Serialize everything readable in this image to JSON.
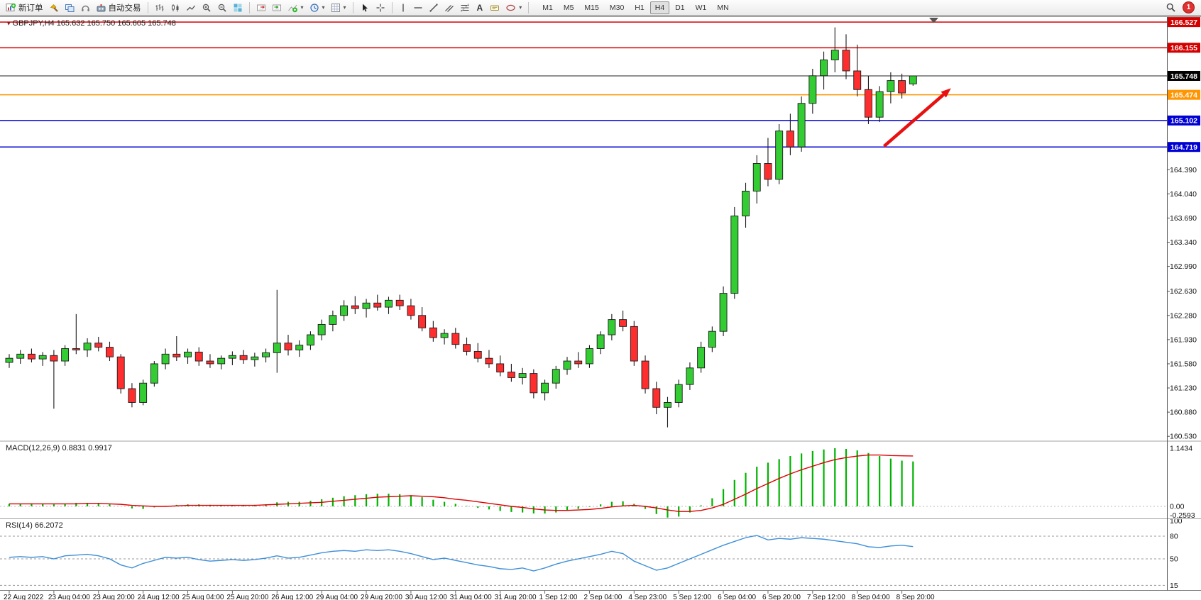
{
  "toolbar": {
    "new_order_label": "新订单",
    "algo_trading_label": "自动交易",
    "timeframes": [
      "M1",
      "M5",
      "M15",
      "M30",
      "H1",
      "H4",
      "D1",
      "W1",
      "MN"
    ],
    "active_timeframe": "H4",
    "notification_count": "1",
    "icon_names": [
      "new-order-icon",
      "hammer-icon",
      "chart-windows-icon",
      "headset-icon",
      "algo-trading-icon",
      "bars-chart-icon",
      "candlestick-chart-icon",
      "line-chart-icon",
      "zoom-in-icon",
      "zoom-out-icon",
      "tile-windows-icon",
      "auto-scroll-icon",
      "chart-shift-icon",
      "indicators-icon",
      "periods-icon",
      "templates-icon",
      "cursor-icon",
      "crosshair-icon",
      "vertical-line-icon",
      "horizontal-line-icon",
      "trendline-icon",
      "channel-icon",
      "fibonacci-icon",
      "text-tool-icon",
      "label-icon",
      "shapes-icon",
      "search-icon",
      "notification-badge"
    ]
  },
  "chart": {
    "header": "GBPJPY,H4 165.632 165.750 165.605 165.748",
    "symbol": "GBPJPY",
    "timeframe": "H4",
    "open": "165.632",
    "high": "165.750",
    "low": "165.605",
    "close": "165.748"
  },
  "macd": {
    "label": "MACD(12,26,9) 0.8831 0.9917"
  },
  "rsi": {
    "label": "RSI(14) 66.2072"
  },
  "chart_data": {
    "type": "candlestick",
    "title": "GBPJPY,H4",
    "ylim": [
      160.49,
      166.6
    ],
    "up_color": "#33cc33",
    "down_color": "#ff2e2e",
    "price_axis_ticks": [
      164.39,
      164.04,
      163.69,
      163.34,
      162.99,
      162.63,
      162.28,
      161.93,
      161.58,
      161.23,
      160.88,
      160.53
    ],
    "price_lines": [
      {
        "price": 166.527,
        "label": "166.527",
        "color": "#d40000",
        "kind": "resistance-line"
      },
      {
        "price": 166.155,
        "label": "166.155",
        "color": "#d40000",
        "kind": "resistance-line"
      },
      {
        "price": 165.748,
        "label": "165.748",
        "color": "#222222",
        "kind": "current-price"
      },
      {
        "price": 165.474,
        "label": "165.474",
        "color": "#ff9500",
        "kind": "support-line"
      },
      {
        "price": 165.102,
        "label": "165.102",
        "color": "#0000d4",
        "kind": "support-line"
      },
      {
        "price": 164.719,
        "label": "164.719",
        "color": "#0000d4",
        "kind": "support-line"
      }
    ],
    "x_labels": [
      "22 Aug 2022",
      "23 Aug 04:00",
      "23 Aug 20:00",
      "24 Aug 12:00",
      "25 Aug 04:00",
      "25 Aug 20:00",
      "26 Aug 12:00",
      "29 Aug 04:00",
      "29 Aug 20:00",
      "30 Aug 12:00",
      "31 Aug 04:00",
      "31 Aug 20:00",
      "1 Sep 12:00",
      "2 Sep 04:00",
      "4 Sep 23:00",
      "5 Sep 12:00",
      "6 Sep 04:00",
      "6 Sep 20:00",
      "7 Sep 12:00",
      "8 Sep 04:00",
      "8 Sep 20:00"
    ],
    "x_label_step": 4,
    "candles_ohlc": [
      [
        161.6,
        161.72,
        161.52,
        161.66
      ],
      [
        161.66,
        161.78,
        161.58,
        161.72
      ],
      [
        161.72,
        161.8,
        161.6,
        161.65
      ],
      [
        161.65,
        161.75,
        161.55,
        161.7
      ],
      [
        161.7,
        161.78,
        160.93,
        161.62
      ],
      [
        161.62,
        161.85,
        161.55,
        161.8
      ],
      [
        161.8,
        162.3,
        161.72,
        161.78
      ],
      [
        161.78,
        161.95,
        161.68,
        161.88
      ],
      [
        161.88,
        161.97,
        161.76,
        161.82
      ],
      [
        161.82,
        161.9,
        161.62,
        161.68
      ],
      [
        161.68,
        161.72,
        161.15,
        161.22
      ],
      [
        161.22,
        161.3,
        160.95,
        161.02
      ],
      [
        161.02,
        161.35,
        160.98,
        161.3
      ],
      [
        161.3,
        161.62,
        161.25,
        161.58
      ],
      [
        161.58,
        161.8,
        161.5,
        161.72
      ],
      [
        161.72,
        161.98,
        161.62,
        161.68
      ],
      [
        161.68,
        161.8,
        161.58,
        161.75
      ],
      [
        161.75,
        161.82,
        161.55,
        161.62
      ],
      [
        161.62,
        161.72,
        161.52,
        161.58
      ],
      [
        161.58,
        161.7,
        161.5,
        161.66
      ],
      [
        161.66,
        161.76,
        161.56,
        161.7
      ],
      [
        161.7,
        161.78,
        161.58,
        161.64
      ],
      [
        161.64,
        161.74,
        161.54,
        161.68
      ],
      [
        161.68,
        161.8,
        161.6,
        161.74
      ],
      [
        161.74,
        162.65,
        161.45,
        161.88
      ],
      [
        161.88,
        162.0,
        161.7,
        161.78
      ],
      [
        161.78,
        161.92,
        161.68,
        161.85
      ],
      [
        161.85,
        162.05,
        161.78,
        162.0
      ],
      [
        162.0,
        162.22,
        161.92,
        162.15
      ],
      [
        162.15,
        162.35,
        162.05,
        162.28
      ],
      [
        162.28,
        162.5,
        162.2,
        162.42
      ],
      [
        162.42,
        162.56,
        162.3,
        162.38
      ],
      [
        162.38,
        162.52,
        162.25,
        162.46
      ],
      [
        162.46,
        162.58,
        162.35,
        162.4
      ],
      [
        162.4,
        162.55,
        162.3,
        162.5
      ],
      [
        162.5,
        162.58,
        162.36,
        162.42
      ],
      [
        162.42,
        162.52,
        162.22,
        162.28
      ],
      [
        162.28,
        162.4,
        162.05,
        162.1
      ],
      [
        162.1,
        162.2,
        161.9,
        161.96
      ],
      [
        161.96,
        162.08,
        161.86,
        162.02
      ],
      [
        162.02,
        162.1,
        161.8,
        161.86
      ],
      [
        161.86,
        161.96,
        161.7,
        161.76
      ],
      [
        161.76,
        161.88,
        161.6,
        161.66
      ],
      [
        161.66,
        161.78,
        161.52,
        161.58
      ],
      [
        161.58,
        161.7,
        161.4,
        161.46
      ],
      [
        161.46,
        161.58,
        161.32,
        161.38
      ],
      [
        161.38,
        161.52,
        161.28,
        161.44
      ],
      [
        161.44,
        161.5,
        161.08,
        161.16
      ],
      [
        161.16,
        161.35,
        161.05,
        161.3
      ],
      [
        161.3,
        161.55,
        161.22,
        161.5
      ],
      [
        161.5,
        161.68,
        161.42,
        161.62
      ],
      [
        161.62,
        161.75,
        161.52,
        161.58
      ],
      [
        161.58,
        161.85,
        161.52,
        161.8
      ],
      [
        161.8,
        162.05,
        161.72,
        162.0
      ],
      [
        162.0,
        162.3,
        161.92,
        162.22
      ],
      [
        162.22,
        162.35,
        162.05,
        162.12
      ],
      [
        162.12,
        162.2,
        161.55,
        161.62
      ],
      [
        161.62,
        161.7,
        161.15,
        161.22
      ],
      [
        161.22,
        161.32,
        160.85,
        160.95
      ],
      [
        160.95,
        161.1,
        160.66,
        161.02
      ],
      [
        161.02,
        161.35,
        160.95,
        161.28
      ],
      [
        161.28,
        161.6,
        161.2,
        161.52
      ],
      [
        161.52,
        161.9,
        161.45,
        161.82
      ],
      [
        161.82,
        162.12,
        161.75,
        162.05
      ],
      [
        162.05,
        162.7,
        161.98,
        162.6
      ],
      [
        162.6,
        163.85,
        162.52,
        163.72
      ],
      [
        163.72,
        164.2,
        163.55,
        164.08
      ],
      [
        164.08,
        164.6,
        163.9,
        164.48
      ],
      [
        164.48,
        164.85,
        164.15,
        164.25
      ],
      [
        164.25,
        165.05,
        164.18,
        164.95
      ],
      [
        164.95,
        165.2,
        164.6,
        164.72
      ],
      [
        164.72,
        165.45,
        164.65,
        165.35
      ],
      [
        165.35,
        165.85,
        165.2,
        165.75
      ],
      [
        165.75,
        166.1,
        165.55,
        165.98
      ],
      [
        165.98,
        166.45,
        165.8,
        166.12
      ],
      [
        166.12,
        166.35,
        165.7,
        165.82
      ],
      [
        165.82,
        166.2,
        165.45,
        165.55
      ],
      [
        165.55,
        165.75,
        165.05,
        165.15
      ],
      [
        165.15,
        165.6,
        165.08,
        165.52
      ],
      [
        165.52,
        165.8,
        165.35,
        165.68
      ],
      [
        165.68,
        165.78,
        165.42,
        165.5
      ],
      [
        165.632,
        165.75,
        165.605,
        165.748
      ]
    ],
    "macd": {
      "params": "12,26,9",
      "main_value": 0.8831,
      "signal_value": 0.9917,
      "hist_color": "#00b300",
      "signal_color": "#dd0000",
      "axis_ticks": [
        {
          "v": 1.1434,
          "label": "1.1434"
        },
        {
          "v": 0,
          "label": "0.00"
        },
        {
          "v": -0.2593,
          "label": "-0.2593"
        }
      ],
      "histogram": [
        0.05,
        0.05,
        0.06,
        0.05,
        0.04,
        0.05,
        0.07,
        0.07,
        0.06,
        0.04,
        0.0,
        -0.04,
        -0.05,
        -0.02,
        0.01,
        0.03,
        0.04,
        0.04,
        0.03,
        0.02,
        0.02,
        0.02,
        0.03,
        0.04,
        0.08,
        0.09,
        0.09,
        0.11,
        0.14,
        0.17,
        0.2,
        0.22,
        0.24,
        0.25,
        0.25,
        0.24,
        0.22,
        0.18,
        0.13,
        0.09,
        0.05,
        0.01,
        -0.03,
        -0.06,
        -0.09,
        -0.11,
        -0.12,
        -0.14,
        -0.14,
        -0.12,
        -0.08,
        -0.05,
        -0.01,
        0.04,
        0.09,
        0.1,
        0.05,
        -0.05,
        -0.15,
        -0.22,
        -0.2,
        -0.12,
        0.02,
        0.16,
        0.34,
        0.52,
        0.66,
        0.78,
        0.86,
        0.93,
        0.99,
        1.04,
        1.09,
        1.12,
        1.1434,
        1.13,
        1.1,
        1.05,
        0.99,
        0.94,
        0.9,
        0.8831
      ],
      "signal": [
        0.05,
        0.05,
        0.05,
        0.05,
        0.05,
        0.05,
        0.05,
        0.06,
        0.06,
        0.05,
        0.04,
        0.02,
        0.01,
        0.0,
        0.0,
        0.01,
        0.02,
        0.02,
        0.02,
        0.02,
        0.02,
        0.02,
        0.02,
        0.03,
        0.04,
        0.05,
        0.06,
        0.07,
        0.08,
        0.1,
        0.12,
        0.14,
        0.16,
        0.18,
        0.19,
        0.2,
        0.21,
        0.2,
        0.19,
        0.17,
        0.14,
        0.12,
        0.09,
        0.06,
        0.03,
        0.0,
        -0.02,
        -0.05,
        -0.07,
        -0.08,
        -0.08,
        -0.07,
        -0.06,
        -0.04,
        -0.01,
        0.01,
        0.02,
        0.0,
        -0.03,
        -0.07,
        -0.1,
        -0.1,
        -0.08,
        -0.03,
        0.04,
        0.14,
        0.24,
        0.35,
        0.45,
        0.55,
        0.64,
        0.72,
        0.79,
        0.86,
        0.92,
        0.96,
        0.99,
        1.01,
        1.01,
        1.0,
        0.995,
        0.9917
      ]
    },
    "rsi": {
      "period": 14,
      "value": 66.2072,
      "line_color": "#3d8fd9",
      "levels": [
        80,
        50,
        15
      ],
      "axis_ticks": [
        {
          "v": 100,
          "label": "100"
        },
        {
          "v": 80,
          "label": "80"
        },
        {
          "v": 50,
          "label": "50"
        },
        {
          "v": 15,
          "label": "15"
        }
      ],
      "values": [
        52,
        53,
        52,
        53,
        50,
        54,
        55,
        56,
        54,
        50,
        42,
        38,
        44,
        48,
        52,
        51,
        52,
        49,
        47,
        48,
        49,
        48,
        49,
        51,
        54,
        51,
        52,
        55,
        58,
        60,
        61,
        60,
        62,
        61,
        62,
        60,
        57,
        53,
        49,
        51,
        48,
        45,
        42,
        40,
        37,
        36,
        38,
        34,
        38,
        43,
        47,
        50,
        53,
        56,
        60,
        57,
        47,
        41,
        35,
        38,
        44,
        50,
        56,
        62,
        68,
        73,
        78,
        81,
        75,
        77,
        76,
        78,
        77,
        76,
        74,
        72,
        70,
        66,
        65,
        67,
        68,
        66.2072
      ]
    },
    "trend_arrow": {
      "from_index": 78.4,
      "from_price": 164.73,
      "to_index": 84.4,
      "to_price": 165.57,
      "color": "#e81010"
    }
  }
}
